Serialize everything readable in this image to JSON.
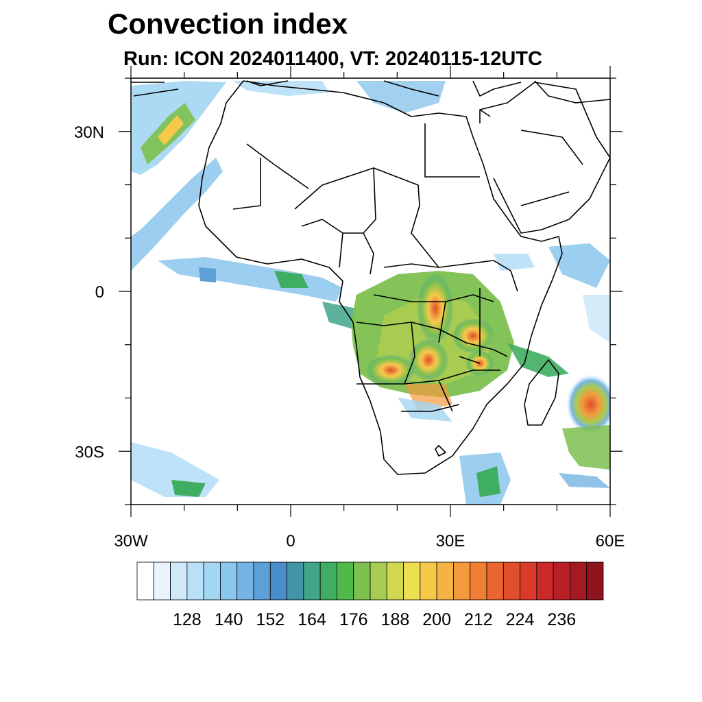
{
  "header": {
    "title": "Convection index",
    "subtitle": "Run: ICON 2024011400,  VT: 20240115-12UTC"
  },
  "map": {
    "region": "Africa",
    "lon_range": [
      -30,
      60
    ],
    "lat_range": [
      -40,
      40
    ],
    "lat_labels": [
      {
        "lat": 30,
        "label": "30N"
      },
      {
        "lat": 0,
        "label": "0"
      },
      {
        "lat": -30,
        "label": "30S"
      }
    ],
    "lon_labels": [
      {
        "lon": -30,
        "label": "30W"
      },
      {
        "lon": 0,
        "label": "0"
      },
      {
        "lon": 30,
        "label": "30E"
      },
      {
        "lon": 60,
        "label": "60E"
      }
    ],
    "features": [
      "country borders",
      "coastlines",
      "convection index shading"
    ]
  },
  "colorbar": {
    "tick_labels": [
      "128",
      "140",
      "152",
      "164",
      "176",
      "188",
      "200",
      "212",
      "224",
      "236"
    ],
    "colors": [
      "#ffffff",
      "#e8f4fc",
      "#cfe9f8",
      "#b9e0f6",
      "#a3d6f3",
      "#8bc6ec",
      "#76b4e3",
      "#5f9fd7",
      "#4b8ccb",
      "#4394a6",
      "#42a58a",
      "#3fae62",
      "#4fba4a",
      "#7dc04f",
      "#a8cc52",
      "#cfd84f",
      "#eede51",
      "#f6c94b",
      "#f6b345",
      "#f49a3e",
      "#f07f35",
      "#ea652f",
      "#e14e2c",
      "#d93a2a",
      "#cc2a2a",
      "#b81f27",
      "#a31a22",
      "#8e151d"
    ]
  }
}
